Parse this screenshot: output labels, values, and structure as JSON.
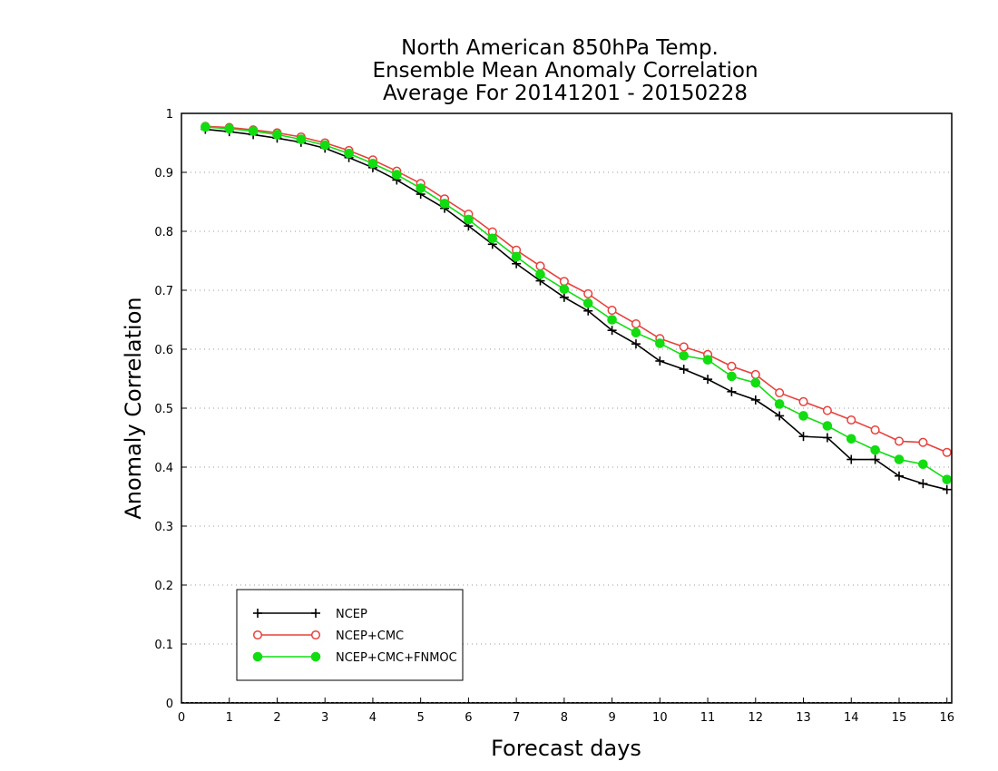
{
  "chart_data": {
    "type": "line",
    "title_lines": [
      "North American 850hPa Temp.",
      "Ensemble Mean Anomaly Correlation",
      "Average For 20141201 - 20150228"
    ],
    "xlabel": "Forecast days",
    "ylabel": "Anomaly Correlation",
    "xlim": [
      0,
      16.1
    ],
    "ylim": [
      0,
      1
    ],
    "x_ticks": [
      0,
      1,
      2,
      3,
      4,
      5,
      6,
      7,
      8,
      9,
      10,
      11,
      12,
      13,
      14,
      15,
      16
    ],
    "y_ticks": [
      0,
      0.1,
      0.2,
      0.3,
      0.4,
      0.5,
      0.6,
      0.7,
      0.8,
      0.9,
      1
    ],
    "y_tick_labels": [
      "0",
      "0.1",
      "0.2",
      "0.3",
      "0.4",
      "0.5",
      "0.6",
      "0.7",
      "0.8",
      "0.9",
      "1"
    ],
    "grid": "horizontal dotted",
    "legend_position": "bottom-left",
    "x": [
      0.5,
      1,
      1.5,
      2,
      2.5,
      3,
      3.5,
      4,
      4.5,
      5,
      5.5,
      6,
      6.5,
      7,
      7.5,
      8,
      8.5,
      9,
      9.5,
      10,
      10.5,
      11,
      11.5,
      12,
      12.5,
      13,
      13.5,
      14,
      14.5,
      15,
      15.5,
      16
    ],
    "series": [
      {
        "name": "NCEP",
        "color": "#000000",
        "marker": "plus",
        "values": [
          0.973,
          0.969,
          0.964,
          0.958,
          0.951,
          0.941,
          0.925,
          0.908,
          0.887,
          0.863,
          0.839,
          0.809,
          0.778,
          0.745,
          0.716,
          0.688,
          0.665,
          0.632,
          0.609,
          0.58,
          0.566,
          0.549,
          0.528,
          0.514,
          0.487,
          0.452,
          0.45,
          0.413,
          0.413,
          0.385,
          0.372,
          0.362
        ]
      },
      {
        "name": "NCEP+CMC",
        "color": "#e8413c",
        "marker": "open-circle",
        "values": [
          0.978,
          0.976,
          0.972,
          0.967,
          0.96,
          0.95,
          0.937,
          0.921,
          0.902,
          0.881,
          0.855,
          0.829,
          0.799,
          0.768,
          0.741,
          0.715,
          0.694,
          0.666,
          0.643,
          0.618,
          0.604,
          0.591,
          0.571,
          0.557,
          0.526,
          0.511,
          0.496,
          0.48,
          0.463,
          0.444,
          0.442,
          0.425
        ]
      },
      {
        "name": "NCEP+CMC+FNMOC",
        "color": "#11dd11",
        "marker": "filled-circle",
        "values": [
          0.977,
          0.974,
          0.97,
          0.964,
          0.956,
          0.946,
          0.932,
          0.915,
          0.896,
          0.873,
          0.847,
          0.82,
          0.788,
          0.757,
          0.727,
          0.702,
          0.678,
          0.65,
          0.628,
          0.61,
          0.589,
          0.582,
          0.554,
          0.543,
          0.507,
          0.487,
          0.47,
          0.448,
          0.429,
          0.413,
          0.405,
          0.379
        ]
      }
    ]
  }
}
